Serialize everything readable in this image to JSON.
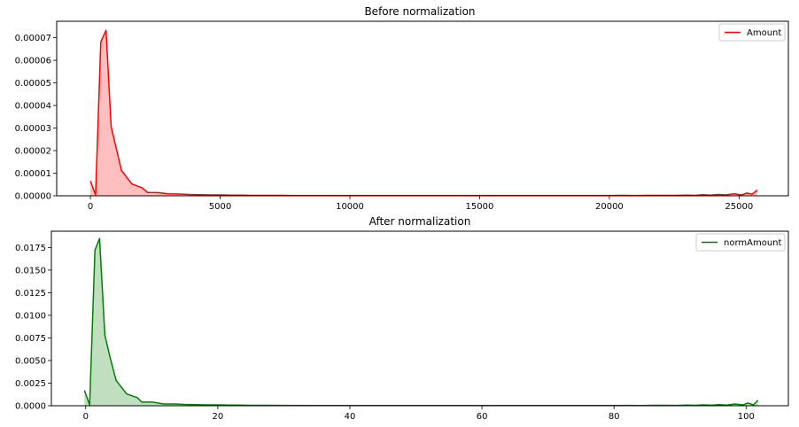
{
  "chart_data": [
    {
      "type": "area",
      "title": "Before normalization",
      "xlabel": "",
      "ylabel": "",
      "xlim": [
        -1300,
        26900
      ],
      "ylim": [
        0,
        7.73e-05
      ],
      "xticks": [
        0,
        5000,
        10000,
        15000,
        20000,
        25000
      ],
      "xtick_labels": [
        "0",
        "5000",
        "10000",
        "15000",
        "20000",
        "25000"
      ],
      "yticks": [
        0,
        1e-05,
        2e-05,
        3e-05,
        4e-05,
        5e-05,
        6e-05,
        7e-05
      ],
      "ytick_labels": [
        "0.00000",
        "0.00001",
        "0.00002",
        "0.00003",
        "0.00004",
        "0.00005",
        "0.00006",
        "0.00007"
      ],
      "grid": false,
      "legend": "top-right",
      "color": "#ff0000",
      "fill_color": "#ffbfbf",
      "series": [
        {
          "name": "Amount",
          "x": [
            0,
            200,
            400,
            600,
            800,
            1000,
            1200,
            1600,
            2000,
            2200,
            2600,
            3000,
            3400,
            3800,
            4200,
            4600,
            5000,
            5400,
            5800,
            6200,
            6600,
            7000,
            7400,
            7800,
            8200,
            8600,
            9000,
            10000,
            11000,
            12000,
            13000,
            14000,
            15000,
            16000,
            17000,
            18000,
            19000,
            20000,
            20500,
            21000,
            21500,
            22000,
            22500,
            23000,
            23300,
            23600,
            23900,
            24200,
            24500,
            24800,
            25100,
            25300,
            25500,
            25700
          ],
          "values": [
            6.5e-06,
            4e-07,
            6.82e-05,
            7.33e-05,
            3.06e-05,
            2.08e-05,
            1.12e-05,
            5.2e-06,
            3.5e-06,
            1.5e-06,
            1.4e-06,
            9e-07,
            8e-07,
            6e-07,
            5e-07,
            4e-07,
            4e-07,
            3e-07,
            3e-07,
            2e-07,
            2e-07,
            2e-07,
            2e-07,
            1e-07,
            1e-07,
            1e-07,
            1e-07,
            1e-07,
            1e-07,
            1e-07,
            1e-07,
            1e-07,
            1e-07,
            1e-07,
            1e-07,
            1e-07,
            1e-07,
            1e-07,
            2e-07,
            1e-07,
            2e-07,
            2e-07,
            2e-07,
            3e-07,
            2e-07,
            5e-07,
            3e-07,
            6e-07,
            4e-07,
            9e-07,
            4e-07,
            1.2e-06,
            7e-07,
            2.5e-06
          ]
        }
      ]
    },
    {
      "type": "area",
      "title": "After normalization",
      "xlabel": "",
      "ylabel": "",
      "xlim": [
        -5.2,
        106.4
      ],
      "ylim": [
        0,
        0.0193
      ],
      "xticks": [
        0,
        20,
        40,
        60,
        80,
        100
      ],
      "xtick_labels": [
        "0",
        "20",
        "40",
        "60",
        "80",
        "100"
      ],
      "yticks": [
        0,
        0.0025,
        0.005,
        0.0075,
        0.01,
        0.0125,
        0.015,
        0.0175
      ],
      "ytick_labels": [
        "0.0000",
        "0.0025",
        "0.0050",
        "0.0075",
        "0.0100",
        "0.0125",
        "0.0150",
        "0.0175"
      ],
      "grid": false,
      "legend": "top-right",
      "color": "#008000",
      "fill_color": "#bfdfbf",
      "series": [
        {
          "name": "normAmount",
          "x": [
            -0.2,
            0.6,
            1.4,
            2.1,
            2.9,
            3.7,
            4.6,
            6.2,
            7.8,
            8.5,
            10.1,
            11.8,
            13.4,
            15.0,
            16.6,
            18.2,
            19.8,
            21.4,
            23.0,
            25,
            27,
            30,
            35,
            40,
            45,
            50,
            55,
            60,
            65,
            70,
            75,
            80,
            82,
            84,
            86,
            88,
            89.5,
            91,
            92.3,
            93.5,
            94.7,
            95.9,
            97.1,
            98.3,
            99.5,
            100.3,
            101.1,
            101.8
          ],
          "values": [
            0.0017,
            0.0001,
            0.0172,
            0.0185,
            0.0078,
            0.0053,
            0.0028,
            0.0013,
            0.0009,
            0.0004,
            0.0004,
            0.0002,
            0.0002,
            0.00015,
            0.00013,
            0.0001,
            0.0001,
            8e-05,
            8e-05,
            5e-05,
            5e-05,
            4e-05,
            3e-05,
            3e-05,
            3e-05,
            3e-05,
            3e-05,
            3e-05,
            3e-05,
            3e-05,
            3e-05,
            3e-05,
            4e-05,
            3e-05,
            5e-05,
            5e-05,
            4e-05,
            7e-05,
            5e-05,
            0.0001,
            6e-05,
            0.00013,
            8e-05,
            0.0002,
            0.0001,
            0.0003,
            0.0001,
            0.0006
          ]
        }
      ]
    }
  ]
}
